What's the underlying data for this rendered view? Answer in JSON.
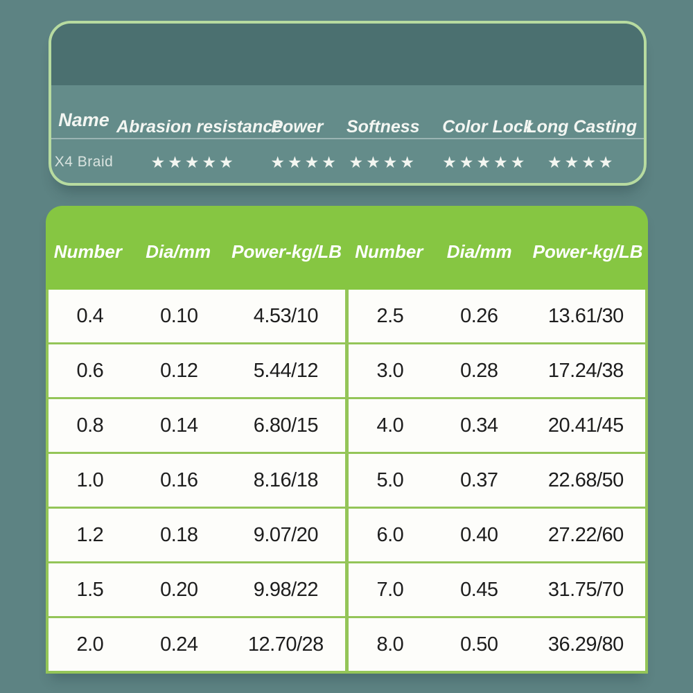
{
  "colors": {
    "page_bg": "#5d8383",
    "card_border_green": "#b7dba0",
    "ratings_band_teal": "#4b7070",
    "ratings_body_teal": "#648c8a",
    "table_header_green": "#86c642",
    "table_line_green": "#94c558",
    "table_row_bg": "#fdfdfa",
    "table_text": "#1d1d1d",
    "light_text": "#f2f5f0"
  },
  "ratings_card": {
    "columns": [
      "Name",
      "Abrasion resistance",
      "Power",
      "Softness",
      "Color Lock",
      "Long Casting"
    ],
    "product_name": "X4 Braid",
    "ratings": [
      {
        "attribute": "Abrasion resistance",
        "rating": 5,
        "stars": "★★★★★"
      },
      {
        "attribute": "Power",
        "rating": 4,
        "stars": "★★★★"
      },
      {
        "attribute": "Softness",
        "rating": 4,
        "stars": "★★★★"
      },
      {
        "attribute": "Color Lock",
        "rating": 5,
        "stars": "★★★★★"
      },
      {
        "attribute": "Long Casting",
        "rating": 4,
        "stars": "★★★★"
      }
    ]
  },
  "spec_table": {
    "headers": [
      "Number",
      "Dia/mm",
      "Power-kg/LB",
      "Number",
      "Dia/mm",
      "Power-kg/LB"
    ],
    "rows": [
      {
        "left": [
          "0.4",
          "0.10",
          "4.53/10"
        ],
        "right": [
          "2.5",
          "0.26",
          "13.61/30"
        ]
      },
      {
        "left": [
          "0.6",
          "0.12",
          "5.44/12"
        ],
        "right": [
          "3.0",
          "0.28",
          "17.24/38"
        ]
      },
      {
        "left": [
          "0.8",
          "0.14",
          "6.80/15"
        ],
        "right": [
          "4.0",
          "0.34",
          "20.41/45"
        ]
      },
      {
        "left": [
          "1.0",
          "0.16",
          "8.16/18"
        ],
        "right": [
          "5.0",
          "0.37",
          "22.68/50"
        ]
      },
      {
        "left": [
          "1.2",
          "0.18",
          "9.07/20"
        ],
        "right": [
          "6.0",
          "0.40",
          "27.22/60"
        ]
      },
      {
        "left": [
          "1.5",
          "0.20",
          "9.98/22"
        ],
        "right": [
          "7.0",
          "0.45",
          "31.75/70"
        ]
      },
      {
        "left": [
          "2.0",
          "0.24",
          "12.70/28"
        ],
        "right": [
          "8.0",
          "0.50",
          "36.29/80"
        ]
      }
    ]
  }
}
